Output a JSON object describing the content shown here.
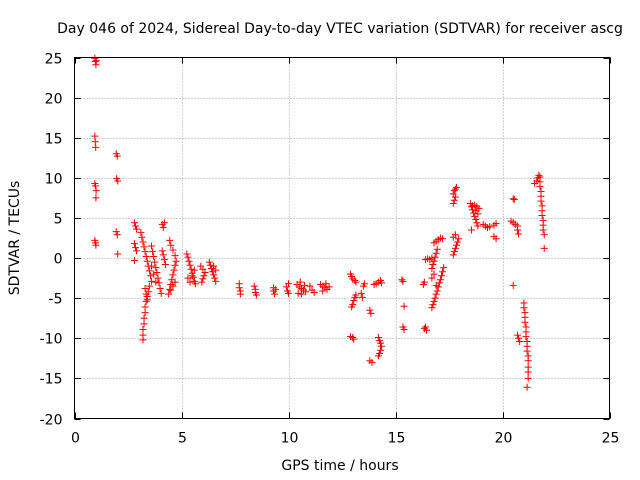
{
  "chart_data": {
    "type": "scatter",
    "title": "Day 046 of 2024, Sidereal Day-to-day VTEC variation (SDTVAR) for receiver ascg",
    "xlabel": "GPS time / hours",
    "ylabel": "SDTVAR / TECUs",
    "xlim": [
      0,
      25
    ],
    "ylim": [
      -20,
      25
    ],
    "xticks": [
      0,
      5,
      10,
      15,
      20,
      25
    ],
    "yticks": [
      -20,
      -15,
      -10,
      -5,
      0,
      5,
      10,
      15,
      20,
      25
    ],
    "xtick_labels": [
      "0",
      "5",
      "10",
      "15",
      "20",
      "25"
    ],
    "ytick_labels": [
      "-20",
      "-15",
      "-10",
      "-5",
      "0",
      "5",
      "10",
      "15",
      "20",
      "25"
    ],
    "grid": true,
    "marker": "+",
    "color": "#ff0000",
    "series": [
      {
        "name": "SDTVAR",
        "points": [
          [
            0.95,
            24.9
          ],
          [
            0.97,
            24.5
          ],
          [
            1.0,
            24.1
          ],
          [
            1.02,
            24.6
          ],
          [
            0.95,
            15.2
          ],
          [
            0.97,
            14.5
          ],
          [
            0.99,
            13.8
          ],
          [
            0.95,
            9.3
          ],
          [
            0.98,
            9.0
          ],
          [
            1.01,
            8.4
          ],
          [
            1.0,
            7.5
          ],
          [
            0.95,
            2.2
          ],
          [
            0.98,
            1.9
          ],
          [
            1.0,
            1.6
          ],
          [
            1.95,
            13.0
          ],
          [
            2.0,
            12.7
          ],
          [
            1.97,
            9.9
          ],
          [
            2.02,
            9.6
          ],
          [
            1.95,
            3.3
          ],
          [
            2.0,
            2.9
          ],
          [
            2.02,
            0.5
          ],
          [
            2.8,
            4.4
          ],
          [
            2.85,
            4.0
          ],
          [
            2.9,
            3.6
          ],
          [
            2.8,
            1.8
          ],
          [
            2.85,
            1.3
          ],
          [
            2.9,
            0.9
          ],
          [
            2.8,
            -0.3
          ],
          [
            3.1,
            3.2
          ],
          [
            3.15,
            2.6
          ],
          [
            3.2,
            2.0
          ],
          [
            3.25,
            1.4
          ],
          [
            3.3,
            0.8
          ],
          [
            3.35,
            0.2
          ],
          [
            3.4,
            -0.4
          ],
          [
            3.45,
            -1.0
          ],
          [
            3.5,
            -1.6
          ],
          [
            3.55,
            -2.2
          ],
          [
            3.6,
            -2.9
          ],
          [
            3.5,
            -3.5
          ],
          [
            3.45,
            -4.2
          ],
          [
            3.4,
            -4.8
          ],
          [
            3.35,
            -5.4
          ],
          [
            3.3,
            -6.1
          ],
          [
            3.3,
            -6.8
          ],
          [
            3.25,
            -7.5
          ],
          [
            3.25,
            -8.2
          ],
          [
            3.2,
            -8.9
          ],
          [
            3.2,
            -9.6
          ],
          [
            3.2,
            -10.2
          ],
          [
            3.3,
            -3.8
          ],
          [
            3.35,
            -4.5
          ],
          [
            3.4,
            -5.2
          ],
          [
            3.6,
            1.5
          ],
          [
            3.65,
            0.8
          ],
          [
            3.7,
            0.2
          ],
          [
            3.75,
            -0.5
          ],
          [
            3.8,
            -1.2
          ],
          [
            3.85,
            -1.8
          ],
          [
            3.9,
            -2.5
          ],
          [
            3.95,
            -3.1
          ],
          [
            4.0,
            -3.8
          ],
          [
            4.05,
            -4.4
          ],
          [
            3.6,
            -1.0
          ],
          [
            3.7,
            -2.0
          ],
          [
            3.8,
            -3.0
          ],
          [
            4.1,
            0.9
          ],
          [
            4.15,
            0.4
          ],
          [
            4.2,
            -0.2
          ],
          [
            4.25,
            -0.8
          ],
          [
            4.1,
            4.2
          ],
          [
            4.15,
            3.8
          ],
          [
            4.2,
            4.4
          ],
          [
            4.4,
            -4.5
          ],
          [
            4.45,
            -3.9
          ],
          [
            4.5,
            -3.3
          ],
          [
            4.55,
            -2.7
          ],
          [
            4.6,
            -2.1
          ],
          [
            4.65,
            -1.5
          ],
          [
            4.7,
            -0.9
          ],
          [
            4.75,
            -0.4
          ],
          [
            4.7,
            0.3
          ],
          [
            4.6,
            1.0
          ],
          [
            4.5,
            1.6
          ],
          [
            4.45,
            2.2
          ],
          [
            4.5,
            -4.0
          ],
          [
            4.6,
            -3.5
          ],
          [
            4.7,
            -3.0
          ],
          [
            5.25,
            0.5
          ],
          [
            5.3,
            0.1
          ],
          [
            5.35,
            -0.4
          ],
          [
            5.4,
            -0.9
          ],
          [
            5.45,
            -1.4
          ],
          [
            5.5,
            -1.9
          ],
          [
            5.55,
            -2.4
          ],
          [
            5.6,
            -2.9
          ],
          [
            5.65,
            -3.2
          ],
          [
            5.3,
            -2.5
          ],
          [
            5.4,
            -3.0
          ],
          [
            5.5,
            -2.2
          ],
          [
            5.6,
            -1.5
          ],
          [
            5.9,
            -1.0
          ],
          [
            6.0,
            -1.4
          ],
          [
            6.1,
            -1.8
          ],
          [
            6.0,
            -2.6
          ],
          [
            5.95,
            -3.0
          ],
          [
            6.05,
            -2.2
          ],
          [
            6.3,
            -0.5
          ],
          [
            6.35,
            -0.9
          ],
          [
            6.4,
            -1.3
          ],
          [
            6.45,
            -1.7
          ],
          [
            6.5,
            -2.1
          ],
          [
            6.55,
            -2.5
          ],
          [
            6.6,
            -2.9
          ],
          [
            6.5,
            -1.0
          ],
          [
            6.6,
            -1.5
          ],
          [
            7.7,
            -3.2
          ],
          [
            7.7,
            -3.7
          ],
          [
            7.75,
            -4.1
          ],
          [
            7.75,
            -4.5
          ],
          [
            8.4,
            -3.5
          ],
          [
            8.45,
            -3.9
          ],
          [
            8.45,
            -4.3
          ],
          [
            8.5,
            -4.6
          ],
          [
            9.3,
            -3.7
          ],
          [
            9.3,
            -4.1
          ],
          [
            9.35,
            -4.5
          ],
          [
            9.4,
            -3.9
          ],
          [
            9.9,
            -3.6
          ],
          [
            9.95,
            -4.1
          ],
          [
            10.0,
            -4.4
          ],
          [
            10.0,
            -3.2
          ],
          [
            10.4,
            -3.3
          ],
          [
            10.5,
            -3.6
          ],
          [
            10.6,
            -3.8
          ],
          [
            10.7,
            -4.0
          ],
          [
            10.8,
            -4.2
          ],
          [
            10.6,
            -4.5
          ],
          [
            10.45,
            -4.4
          ],
          [
            10.55,
            -3.0
          ],
          [
            10.75,
            -3.4
          ],
          [
            11.0,
            -3.5
          ],
          [
            11.1,
            -4.0
          ],
          [
            11.2,
            -4.3
          ],
          [
            11.5,
            -3.3
          ],
          [
            11.6,
            -3.5
          ],
          [
            11.7,
            -3.7
          ],
          [
            11.8,
            -3.9
          ],
          [
            11.9,
            -3.6
          ],
          [
            11.75,
            -3.2
          ],
          [
            11.6,
            -4.1
          ],
          [
            12.9,
            -2.0
          ],
          [
            12.95,
            -2.3
          ],
          [
            13.0,
            -2.6
          ],
          [
            13.1,
            -2.8
          ],
          [
            13.15,
            -3.0
          ],
          [
            12.9,
            -9.8
          ],
          [
            13.0,
            -9.9
          ],
          [
            13.05,
            -10.1
          ],
          [
            13.0,
            -5.8
          ],
          [
            13.05,
            -5.3
          ],
          [
            13.1,
            -4.9
          ],
          [
            13.15,
            -4.6
          ],
          [
            12.95,
            -6.1
          ],
          [
            13.4,
            -4.4
          ],
          [
            13.45,
            -4.9
          ],
          [
            13.5,
            -3.5
          ],
          [
            13.55,
            -3.2
          ],
          [
            13.8,
            -6.5
          ],
          [
            13.85,
            -6.9
          ],
          [
            13.8,
            -12.8
          ],
          [
            13.9,
            -13.0
          ],
          [
            14.0,
            -3.3
          ],
          [
            14.1,
            -3.2
          ],
          [
            14.2,
            -3.0
          ],
          [
            14.3,
            -2.8
          ],
          [
            14.35,
            -3.1
          ],
          [
            14.2,
            -9.9
          ],
          [
            14.25,
            -10.3
          ],
          [
            14.3,
            -10.6
          ],
          [
            14.35,
            -11.0
          ],
          [
            14.3,
            -11.5
          ],
          [
            14.25,
            -11.9
          ],
          [
            14.2,
            -12.2
          ],
          [
            15.3,
            -2.7
          ],
          [
            15.35,
            -2.9
          ],
          [
            15.4,
            -6.0
          ],
          [
            15.35,
            -8.6
          ],
          [
            15.4,
            -8.9
          ],
          [
            16.3,
            -3.3
          ],
          [
            16.35,
            -3.0
          ],
          [
            16.4,
            -8.6
          ],
          [
            16.45,
            -9.0
          ],
          [
            16.35,
            -8.8
          ],
          [
            16.4,
            -0.2
          ],
          [
            16.5,
            -0.1
          ],
          [
            16.6,
            -0.2
          ],
          [
            16.7,
            0.0
          ],
          [
            16.7,
            -1.3
          ],
          [
            16.75,
            -0.8
          ],
          [
            16.8,
            -0.4
          ],
          [
            16.85,
            0.1
          ],
          [
            16.9,
            0.6
          ],
          [
            16.95,
            1.1
          ],
          [
            16.7,
            -6.2
          ],
          [
            16.75,
            -5.8
          ],
          [
            16.8,
            -5.4
          ],
          [
            16.85,
            -5.0
          ],
          [
            16.9,
            -4.5
          ],
          [
            16.95,
            -4.1
          ],
          [
            17.0,
            -3.6
          ],
          [
            17.05,
            -3.1
          ],
          [
            17.1,
            -2.7
          ],
          [
            17.15,
            -2.2
          ],
          [
            17.2,
            -1.7
          ],
          [
            17.25,
            -1.2
          ],
          [
            16.8,
            1.9
          ],
          [
            16.9,
            2.1
          ],
          [
            17.0,
            2.3
          ],
          [
            17.1,
            2.5
          ],
          [
            17.2,
            2.4
          ],
          [
            16.7,
            -2.5
          ],
          [
            16.8,
            -2.0
          ],
          [
            16.9,
            -3.4
          ],
          [
            17.7,
            8.0
          ],
          [
            17.75,
            8.4
          ],
          [
            17.8,
            8.6
          ],
          [
            17.85,
            8.8
          ],
          [
            17.75,
            7.2
          ],
          [
            17.8,
            7.6
          ],
          [
            17.7,
            6.8
          ],
          [
            17.7,
            0.4
          ],
          [
            17.75,
            0.8
          ],
          [
            17.8,
            1.2
          ],
          [
            17.85,
            1.6
          ],
          [
            17.9,
            2.0
          ],
          [
            17.95,
            2.4
          ],
          [
            17.8,
            2.9
          ],
          [
            17.7,
            2.6
          ],
          [
            18.5,
            6.8
          ],
          [
            18.55,
            6.4
          ],
          [
            18.6,
            6.0
          ],
          [
            18.65,
            5.6
          ],
          [
            18.7,
            5.2
          ],
          [
            18.75,
            4.8
          ],
          [
            18.8,
            4.4
          ],
          [
            18.85,
            4.0
          ],
          [
            18.6,
            6.5
          ],
          [
            18.7,
            6.6
          ],
          [
            18.8,
            6.4
          ],
          [
            18.9,
            6.2
          ],
          [
            18.75,
            5.9
          ],
          [
            18.85,
            5.5
          ],
          [
            18.55,
            3.5
          ],
          [
            19.1,
            4.2
          ],
          [
            19.2,
            4.0
          ],
          [
            19.3,
            3.8
          ],
          [
            19.4,
            3.9
          ],
          [
            19.6,
            4.1
          ],
          [
            19.7,
            4.3
          ],
          [
            19.6,
            2.7
          ],
          [
            19.7,
            2.4
          ],
          [
            20.4,
            4.6
          ],
          [
            20.5,
            4.4
          ],
          [
            20.6,
            4.2
          ],
          [
            20.7,
            4.0
          ],
          [
            20.7,
            3.5
          ],
          [
            20.75,
            3.0
          ],
          [
            20.5,
            7.4
          ],
          [
            20.55,
            7.3
          ],
          [
            20.5,
            -3.4
          ],
          [
            20.7,
            -9.6
          ],
          [
            20.75,
            -10.0
          ],
          [
            20.8,
            -10.4
          ],
          [
            21.0,
            -5.6
          ],
          [
            21.0,
            -6.2
          ],
          [
            21.05,
            -6.8
          ],
          [
            21.05,
            -7.4
          ],
          [
            21.05,
            -8.0
          ],
          [
            21.1,
            -8.6
          ],
          [
            21.1,
            -9.2
          ],
          [
            21.1,
            -9.8
          ],
          [
            21.15,
            -10.4
          ],
          [
            21.15,
            -11.0
          ],
          [
            21.15,
            -11.6
          ],
          [
            21.2,
            -12.2
          ],
          [
            21.2,
            -12.8
          ],
          [
            21.2,
            -13.6
          ],
          [
            21.2,
            -14.2
          ],
          [
            21.2,
            -15.0
          ],
          [
            21.15,
            -16.1
          ],
          [
            21.5,
            9.3
          ],
          [
            21.6,
            9.6
          ],
          [
            21.65,
            10.0
          ],
          [
            21.7,
            10.3
          ],
          [
            21.75,
            10.1
          ],
          [
            21.75,
            9.5
          ],
          [
            21.75,
            8.9
          ],
          [
            21.8,
            8.3
          ],
          [
            21.8,
            7.7
          ],
          [
            21.8,
            7.1
          ],
          [
            21.85,
            6.5
          ],
          [
            21.85,
            5.9
          ],
          [
            21.85,
            5.3
          ],
          [
            21.9,
            4.7
          ],
          [
            21.9,
            4.1
          ],
          [
            21.9,
            3.5
          ],
          [
            21.95,
            2.9
          ],
          [
            21.95,
            1.2
          ]
        ]
      }
    ]
  }
}
